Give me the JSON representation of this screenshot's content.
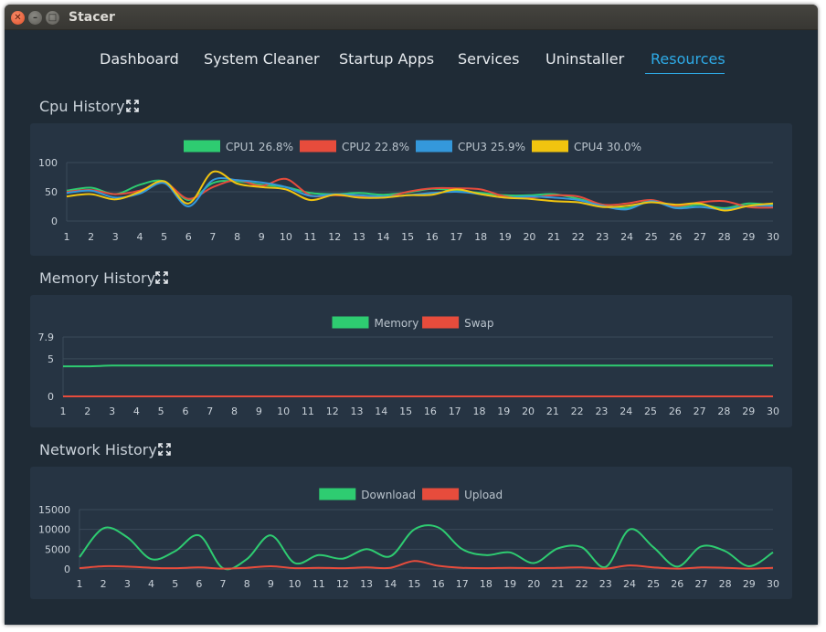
{
  "window": {
    "title": "Stacer"
  },
  "nav": {
    "tabs": [
      {
        "label": "Dashboard",
        "active": false
      },
      {
        "label": "System Cleaner",
        "active": false
      },
      {
        "label": "Startup Apps",
        "active": false
      },
      {
        "label": "Services",
        "active": false
      },
      {
        "label": "Uninstaller",
        "active": false
      },
      {
        "label": "Resources",
        "active": true
      }
    ]
  },
  "cpu": {
    "title": "Cpu History",
    "icon": "expand-icon"
  },
  "memory": {
    "title": "Memory History",
    "icon": "expand-icon"
  },
  "network": {
    "title": "Network History",
    "icon": "expand-icon"
  },
  "colors": {
    "accent": "#2eaae6",
    "green": "#2ecc71",
    "red": "#e74c3c",
    "blue": "#3498db",
    "yellow": "#f1c40f"
  },
  "chart_data": [
    {
      "id": "cpu",
      "type": "line",
      "x": [
        1,
        2,
        3,
        4,
        5,
        6,
        7,
        8,
        9,
        10,
        11,
        12,
        13,
        14,
        15,
        16,
        17,
        18,
        19,
        20,
        21,
        22,
        23,
        24,
        25,
        26,
        27,
        28,
        29,
        30
      ],
      "ylim": [
        0,
        100
      ],
      "yticks": [
        "100",
        "50",
        "0"
      ],
      "legend": "top",
      "series": [
        {
          "name": "CPU1 26.8%",
          "color": "#2ecc71",
          "values": [
            52,
            57,
            46,
            62,
            68,
            36,
            65,
            68,
            62,
            58,
            48,
            46,
            48,
            45,
            49,
            55,
            52,
            48,
            44,
            44,
            46,
            38,
            28,
            22,
            35,
            24,
            28,
            22,
            30,
            27
          ]
        },
        {
          "name": "CPU2 22.8%",
          "color": "#e74c3c",
          "values": [
            50,
            53,
            46,
            52,
            66,
            38,
            58,
            70,
            60,
            72,
            44,
            44,
            42,
            40,
            50,
            56,
            56,
            54,
            42,
            40,
            44,
            42,
            28,
            30,
            36,
            26,
            32,
            34,
            24,
            23
          ]
        },
        {
          "name": "CPU3 25.9%",
          "color": "#3498db",
          "values": [
            48,
            52,
            40,
            47,
            65,
            25,
            70,
            70,
            66,
            58,
            43,
            46,
            44,
            42,
            44,
            48,
            50,
            46,
            40,
            42,
            40,
            36,
            26,
            20,
            34,
            22,
            24,
            20,
            26,
            26
          ]
        },
        {
          "name": "CPU4 30.0%",
          "color": "#f1c40f",
          "values": [
            42,
            46,
            37,
            50,
            68,
            30,
            84,
            64,
            58,
            54,
            36,
            45,
            40,
            40,
            44,
            45,
            54,
            46,
            40,
            38,
            34,
            32,
            24,
            26,
            32,
            28,
            30,
            18,
            26,
            30
          ]
        }
      ]
    },
    {
      "id": "memory",
      "type": "line",
      "x": [
        1,
        2,
        3,
        4,
        5,
        6,
        7,
        8,
        9,
        10,
        11,
        12,
        13,
        14,
        15,
        16,
        17,
        18,
        19,
        20,
        21,
        22,
        23,
        24,
        25,
        26,
        27,
        28,
        29,
        30
      ],
      "ylim": [
        0,
        7.9
      ],
      "yticks": [
        "7.9",
        "5",
        "0"
      ],
      "legend": "top",
      "series": [
        {
          "name": "Memory",
          "color": "#2ecc71",
          "values": [
            4.0,
            4.0,
            4.1,
            4.1,
            4.1,
            4.1,
            4.1,
            4.1,
            4.1,
            4.1,
            4.1,
            4.1,
            4.1,
            4.1,
            4.1,
            4.1,
            4.1,
            4.1,
            4.1,
            4.1,
            4.1,
            4.1,
            4.1,
            4.1,
            4.1,
            4.1,
            4.1,
            4.1,
            4.1,
            4.1
          ]
        },
        {
          "name": "Swap",
          "color": "#e74c3c",
          "values": [
            0,
            0,
            0,
            0,
            0,
            0,
            0,
            0,
            0,
            0,
            0,
            0,
            0,
            0,
            0,
            0,
            0,
            0,
            0,
            0,
            0,
            0,
            0,
            0,
            0,
            0,
            0,
            0,
            0,
            0
          ]
        }
      ]
    },
    {
      "id": "network",
      "type": "line",
      "x": [
        1,
        2,
        3,
        4,
        5,
        6,
        7,
        8,
        9,
        10,
        11,
        12,
        13,
        14,
        15,
        16,
        17,
        18,
        19,
        20,
        21,
        22,
        23,
        24,
        25,
        26,
        27,
        28,
        29,
        30
      ],
      "ylim": [
        0,
        15000
      ],
      "yticks": [
        "15000",
        "10000",
        "5000",
        "0"
      ],
      "legend": "top",
      "series": [
        {
          "name": "Download",
          "color": "#2ecc71",
          "values": [
            3000,
            10300,
            8000,
            2500,
            4500,
            8500,
            200,
            2500,
            8500,
            1500,
            3500,
            2600,
            5000,
            3200,
            10000,
            10500,
            5000,
            3500,
            4200,
            1500,
            5200,
            5500,
            500,
            10000,
            5500,
            600,
            5700,
            4500,
            700,
            4200
          ]
        },
        {
          "name": "Upload",
          "color": "#e74c3c",
          "values": [
            200,
            700,
            600,
            300,
            200,
            400,
            100,
            300,
            700,
            200,
            300,
            200,
            400,
            300,
            2000,
            800,
            300,
            200,
            300,
            200,
            300,
            400,
            100,
            900,
            400,
            100,
            400,
            300,
            100,
            300
          ]
        }
      ]
    }
  ]
}
